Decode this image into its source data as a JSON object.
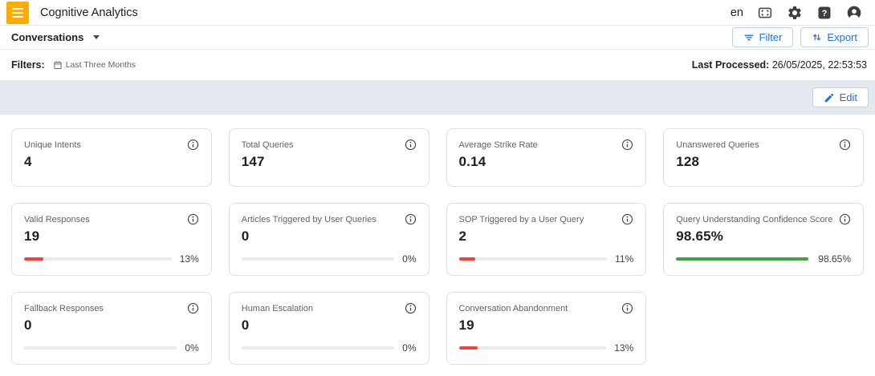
{
  "header": {
    "title": "Cognitive Analytics",
    "language": "en"
  },
  "toolbar": {
    "view_selector": "Conversations",
    "filter_label": "Filter",
    "export_label": "Export"
  },
  "filters": {
    "label": "Filters:",
    "date_range": "Last Three Months",
    "last_processed_label": "Last Processed:",
    "last_processed_value": "26/05/2025, 22:53:53"
  },
  "edit_bar": {
    "edit_label": "Edit"
  },
  "colors": {
    "brand_orange": "#ffab00",
    "accent_blue": "#1a73e8",
    "bar_red": "#f44336",
    "bar_green": "#43a047",
    "bar_track": "#e8eaed",
    "band_grey": "#e3e8ee"
  },
  "icons": {
    "menu": "hamburger-menu",
    "fit_screen": "dashed-corner-square",
    "settings": "gear",
    "help": "question-mark-square",
    "account": "person-circle",
    "filter": "funnel-lines",
    "export": "up-down-arrows",
    "edit": "pencil",
    "date": "calendar",
    "info": "info-circle",
    "dropdown": "caret-down"
  },
  "cards": [
    {
      "label": "Unique Intents",
      "value": "4"
    },
    {
      "label": "Total Queries",
      "value": "147"
    },
    {
      "label": "Average Strike Rate",
      "value": "0.14"
    },
    {
      "label": "Unanswered Queries",
      "value": "128"
    },
    {
      "label": "Valid Responses",
      "value": "19",
      "percent": "13%",
      "percent_value": 13,
      "bar_color": "red"
    },
    {
      "label": "Articles Triggered by User Queries",
      "value": "0",
      "percent": "0%",
      "percent_value": 0,
      "bar_color": "grey"
    },
    {
      "label": "SOP Triggered by a User Query",
      "value": "2",
      "percent": "11%",
      "percent_value": 11,
      "bar_color": "red"
    },
    {
      "label": "Query Understanding Confidence Score",
      "value": "98.65%",
      "percent": "98.65%",
      "percent_value": 98.65,
      "bar_color": "green"
    },
    {
      "label": "Fallback Responses",
      "value": "0",
      "percent": "0%",
      "percent_value": 0,
      "bar_color": "grey"
    },
    {
      "label": "Human Escalation",
      "value": "0",
      "percent": "0%",
      "percent_value": 0,
      "bar_color": "grey"
    },
    {
      "label": "Conversation Abandonment",
      "value": "19",
      "percent": "13%",
      "percent_value": 13,
      "bar_color": "red"
    }
  ]
}
